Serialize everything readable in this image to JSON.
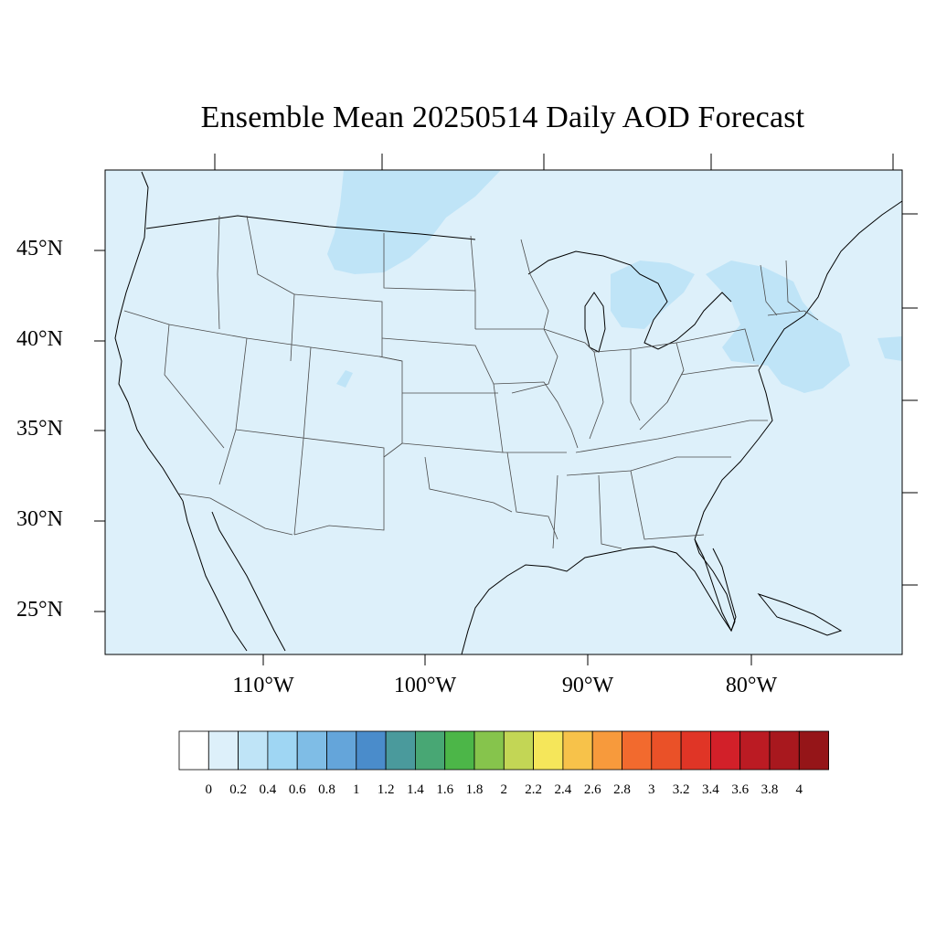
{
  "title": "Ensemble Mean 20250514 Daily AOD Forecast",
  "axes": {
    "lat_ticks": [
      "45°N",
      "40°N",
      "35°N",
      "30°N",
      "25°N"
    ],
    "lon_ticks": [
      "110°W",
      "100°W",
      "90°W",
      "80°W"
    ]
  },
  "map": {
    "projection": "Lambert conformal, CONUS",
    "background_color": "#ddf0fa",
    "land_sea_fill": "#ddf0fa",
    "outline_color": "#000000",
    "state_line_color": "#555555",
    "enhanced_aod_fill": "#bfe4f7",
    "enhanced_aod_regions": [
      "northern Montana / southern Saskatchewan",
      "southern Ontario and Great Lakes",
      "New York / southern New England / Mid-Atlantic and adjacent Atlantic"
    ]
  },
  "colorbar": {
    "labels": [
      "0",
      "0.2",
      "0.4",
      "0.6",
      "0.8",
      "1",
      "1.2",
      "1.4",
      "1.6",
      "1.8",
      "2",
      "2.2",
      "2.4",
      "2.6",
      "2.8",
      "3",
      "3.2",
      "3.4",
      "3.6",
      "3.8",
      "4"
    ],
    "colors": [
      "#ffffff",
      "#ddf0fa",
      "#bfe4f7",
      "#9fd6f3",
      "#7fbde6",
      "#64a5da",
      "#4a8ccb",
      "#4a9a9c",
      "#48a774",
      "#4cb648",
      "#86c44c",
      "#c3d655",
      "#f5e65a",
      "#f7c24a",
      "#f79a3c",
      "#f26a2e",
      "#ea5128",
      "#e03526",
      "#d22029",
      "#bb1b23",
      "#a8181e",
      "#951518"
    ]
  }
}
